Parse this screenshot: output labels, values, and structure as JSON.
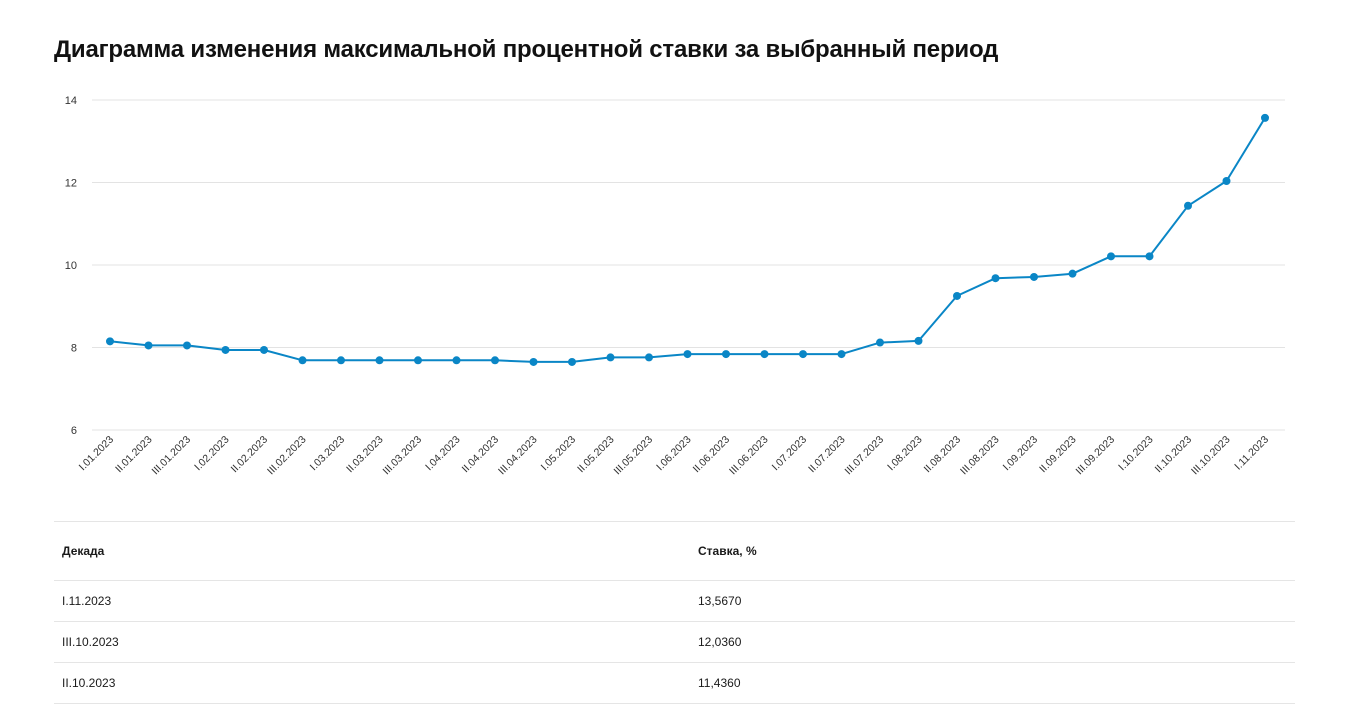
{
  "title": "Диаграмма изменения максимальной процентной ставки за выбранный период",
  "chart_data": {
    "type": "line",
    "title": "Диаграмма изменения максимальной процентной ставки за выбранный период",
    "xlabel": "",
    "ylabel": "",
    "ylim": [
      6,
      14
    ],
    "yticks": [
      6,
      8,
      10,
      12,
      14
    ],
    "grid": true,
    "color": "#0a86c6",
    "categories": [
      "I.01.2023",
      "II.01.2023",
      "III.01.2023",
      "I.02.2023",
      "II.02.2023",
      "III.02.2023",
      "I.03.2023",
      "II.03.2023",
      "III.03.2023",
      "I.04.2023",
      "II.04.2023",
      "III.04.2023",
      "I.05.2023",
      "II.05.2023",
      "III.05.2023",
      "I.06.2023",
      "II.06.2023",
      "III.06.2023",
      "I.07.2023",
      "II.07.2023",
      "III.07.2023",
      "I.08.2023",
      "II.08.2023",
      "III.08.2023",
      "I.09.2023",
      "II.09.2023",
      "III.09.2023",
      "I.10.2023",
      "II.10.2023",
      "III.10.2023",
      "I.11.2023"
    ],
    "values": [
      8.15,
      8.05,
      8.05,
      7.94,
      7.94,
      7.69,
      7.69,
      7.69,
      7.69,
      7.69,
      7.69,
      7.65,
      7.65,
      7.76,
      7.76,
      7.84,
      7.84,
      7.84,
      7.84,
      7.84,
      8.12,
      8.16,
      9.25,
      9.68,
      9.71,
      9.79,
      10.21,
      10.21,
      11.436,
      12.036,
      13.567
    ]
  },
  "table": {
    "headers": {
      "decade": "Декада",
      "rate": "Ставка, %"
    },
    "rows": [
      {
        "decade": "I.11.2023",
        "rate": "13,5670"
      },
      {
        "decade": "III.10.2023",
        "rate": "12,0360"
      },
      {
        "decade": "II.10.2023",
        "rate": "11,4360"
      }
    ]
  }
}
